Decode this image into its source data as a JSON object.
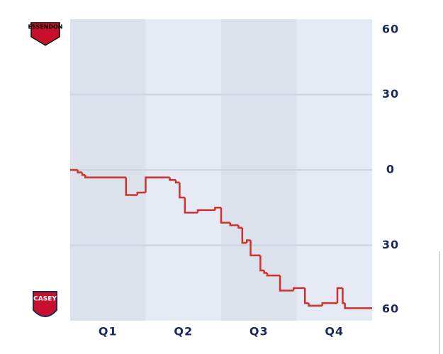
{
  "chart_data": {
    "type": "step-line",
    "teams": {
      "top": "ESSENDON",
      "bottom": "CASEY"
    },
    "categories": [
      "Q1",
      "Q2",
      "Q3",
      "Q4"
    ],
    "xlim": [
      0,
      4
    ],
    "ylim": [
      -60,
      60
    ],
    "yticks": [
      60,
      30,
      0,
      {
        "value": -30,
        "label": "30"
      },
      {
        "value": -60,
        "label": "60"
      }
    ],
    "grid": true,
    "series": [
      {
        "color": "#d0312d",
        "x": [
          0,
          0.1,
          0.16,
          0.2,
          0.74,
          0.89,
          1.0,
          1.32,
          1.4,
          1.45,
          1.52,
          1.69,
          1.92,
          2.0,
          2.12,
          2.23,
          2.28,
          2.34,
          2.39,
          2.52,
          2.57,
          2.61,
          2.78,
          2.96,
          3.11,
          3.16,
          3.34,
          3.54,
          3.61,
          3.64,
          4.0
        ],
        "values": [
          0,
          -1,
          -2,
          -3,
          -10,
          -9,
          -3,
          -4,
          -5,
          -11,
          -17,
          -16,
          -15,
          -21,
          -22,
          -23,
          -29,
          -28,
          -34,
          -40,
          -41,
          -42,
          -48,
          -47,
          -53,
          -54,
          -53,
          -47,
          -53,
          -55,
          -55
        ]
      }
    ]
  }
}
